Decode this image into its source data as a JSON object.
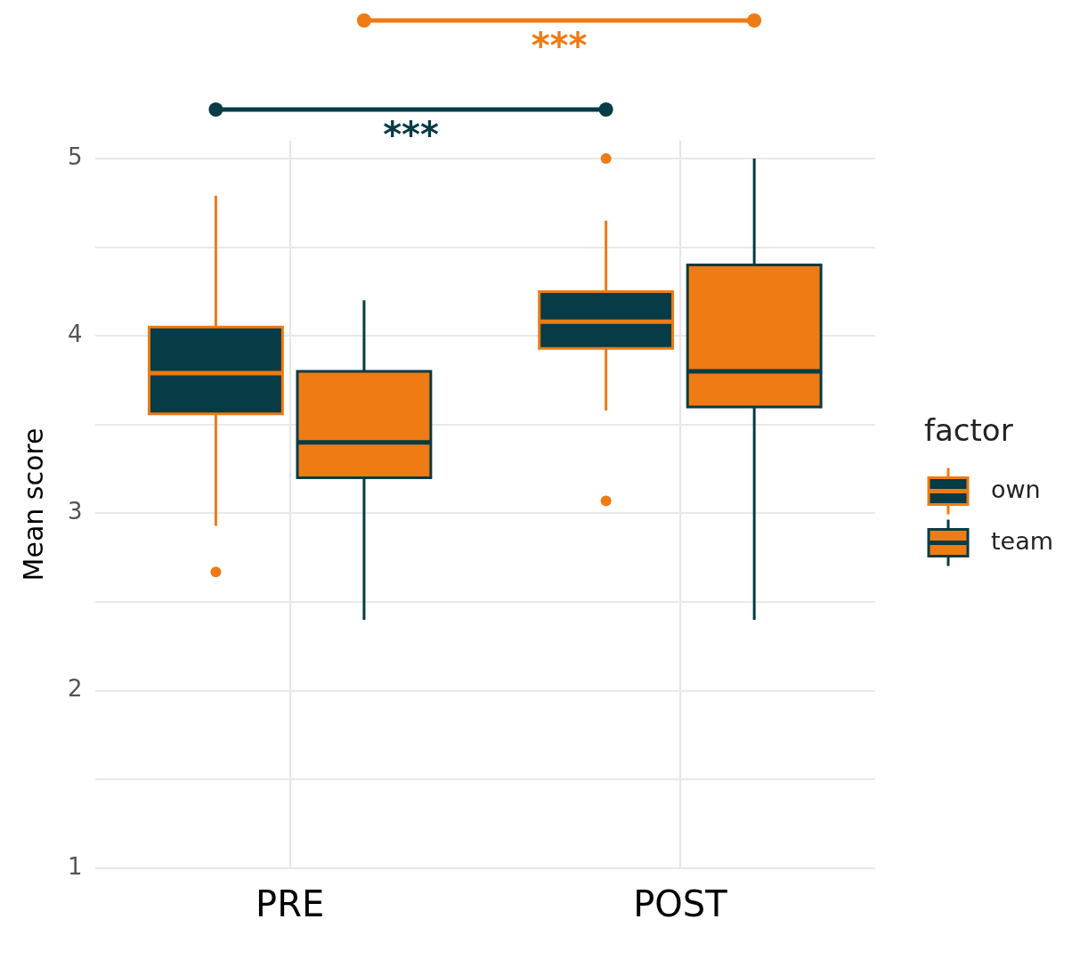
{
  "chart_data": {
    "type": "box",
    "ylabel": "Mean score",
    "categories": [
      "PRE",
      "POST"
    ],
    "series": [
      {
        "name": "own",
        "color": "#073b45",
        "boxes": [
          {
            "low": 2.93,
            "q1": 3.56,
            "median": 3.79,
            "q3": 4.05,
            "high": 4.79,
            "outliers": [
              2.67
            ]
          },
          {
            "low": 3.58,
            "q1": 3.93,
            "median": 4.08,
            "q3": 4.25,
            "high": 4.65,
            "outliers": [
              5.0,
              3.07
            ]
          }
        ]
      },
      {
        "name": "team",
        "color": "#ee7b14",
        "boxes": [
          {
            "low": 2.4,
            "q1": 3.2,
            "median": 3.4,
            "q3": 3.8,
            "high": 4.2
          },
          {
            "low": 2.4,
            "q1": 3.6,
            "median": 3.8,
            "q3": 4.4,
            "high": 5.0
          }
        ]
      }
    ],
    "ylim": [
      1,
      5.1
    ],
    "yticks": [
      1,
      {
        "value": 1.5,
        "label": null
      },
      2,
      {
        "value": 2.5,
        "label": null
      },
      3,
      {
        "value": 3.5,
        "label": null
      },
      4,
      {
        "value": 4.5,
        "label": null
      },
      5
    ],
    "grid": true,
    "legend": "right",
    "legend_title": "factor",
    "annotations": [
      "***",
      "***"
    ]
  }
}
